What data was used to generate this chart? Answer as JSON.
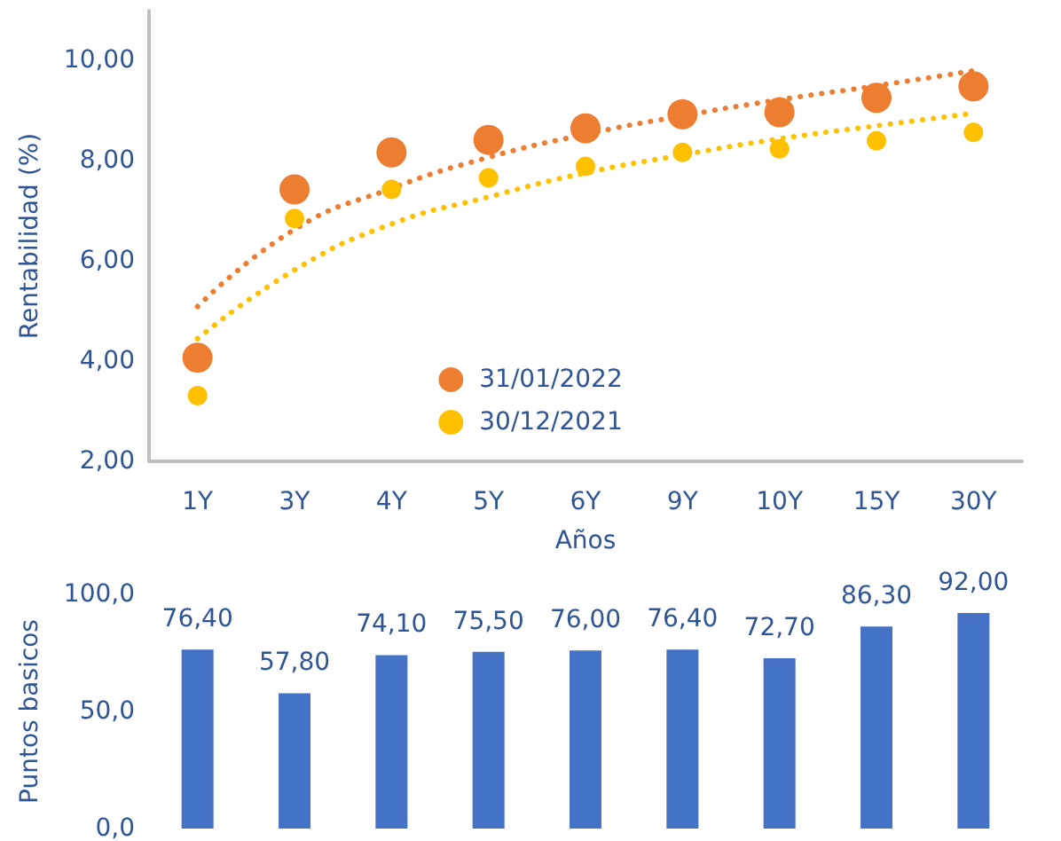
{
  "chart_data": [
    {
      "type": "scatter",
      "xlabel": "Años",
      "ylabel": "Rentabilidad (%)",
      "categories": [
        "1Y",
        "3Y",
        "4Y",
        "5Y",
        "6Y",
        "9Y",
        "10Y",
        "15Y",
        "30Y"
      ],
      "series": [
        {
          "name": "31/01/2022",
          "color": "#ed7d31",
          "values": [
            4.07,
            7.43,
            8.17,
            8.42,
            8.65,
            8.93,
            8.97,
            9.26,
            9.49
          ]
        },
        {
          "name": "30/12/2021",
          "color": "#ffc000",
          "values": [
            3.31,
            6.85,
            7.43,
            7.66,
            7.89,
            8.17,
            8.24,
            8.4,
            8.57
          ]
        },
        {
          "type": "line",
          "color": "#ed7d31",
          "line_style": "dotted",
          "marker": "none",
          "values": [
            5.09,
            6.63,
            7.45,
            8.07,
            8.53,
            8.9,
            9.22,
            9.5,
            9.8
          ]
        },
        {
          "type": "line",
          "color": "#ffc000",
          "line_style": "dotted",
          "marker": "none",
          "values": [
            4.45,
            5.82,
            6.74,
            7.28,
            7.76,
            8.12,
            8.44,
            8.7,
            8.95
          ]
        }
      ],
      "ylim": [
        2,
        11
      ],
      "yticks": [
        {
          "value": 2,
          "label": "2,00"
        },
        {
          "value": 4,
          "label": "4,00"
        },
        {
          "value": 6,
          "label": "6,00"
        },
        {
          "value": 8,
          "label": "8,00"
        },
        {
          "value": 10,
          "label": "10,00"
        }
      ],
      "grid": false,
      "legend": "bottom",
      "marker": "circle"
    },
    {
      "type": "bar",
      "ylabel": "Puntos basicos",
      "categories": [
        null,
        null,
        null,
        null,
        null,
        null,
        null,
        null,
        null
      ],
      "series": [
        {
          "color": "#4472c4",
          "values": [
            76.4,
            57.8,
            74.1,
            75.5,
            76.0,
            76.4,
            72.7,
            86.3,
            92.0
          ],
          "value_labels": [
            "76,40",
            "57,80",
            "74,10",
            "75,50",
            "76,00",
            "76,40",
            "72,70",
            "86,30",
            "92,00"
          ]
        }
      ],
      "ylim": [
        0,
        100
      ],
      "yticks": [
        {
          "value": 0,
          "label": "0,0"
        },
        {
          "value": 50,
          "label": "50,0"
        },
        {
          "value": 100,
          "label": "100,0"
        }
      ],
      "grid": false,
      "tick_labels": "y"
    }
  ]
}
